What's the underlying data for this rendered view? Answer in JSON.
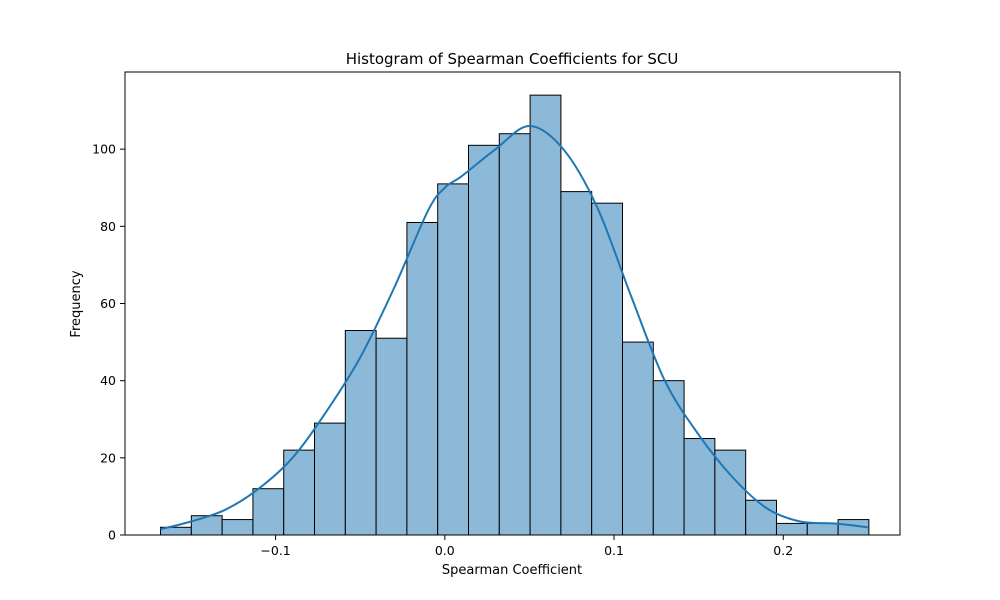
{
  "chart_data": {
    "type": "bar",
    "subtype": "histogram-with-kde",
    "title": "Histogram of Spearman Coefficients for SCU",
    "xlabel": "Spearman Coefficient",
    "ylabel": "Frequency",
    "xlim": [
      -0.189,
      0.269
    ],
    "ylim": [
      0,
      120
    ],
    "xticks": [
      -0.1,
      0.0,
      0.1,
      0.2
    ],
    "xtick_labels": [
      "−0.1",
      "0.0",
      "0.1",
      "0.2"
    ],
    "yticks": [
      0,
      20,
      40,
      60,
      80,
      100
    ],
    "ytick_labels": [
      "0",
      "20",
      "40",
      "60",
      "80",
      "100"
    ],
    "bin_start": -0.168,
    "bin_width": 0.0182,
    "counts": [
      2,
      5,
      4,
      12,
      22,
      29,
      53,
      51,
      81,
      91,
      101,
      104,
      114,
      89,
      86,
      50,
      40,
      25,
      22,
      9,
      3,
      3,
      4
    ],
    "kde": {
      "x": [
        -0.168,
        -0.15,
        -0.13,
        -0.11,
        -0.09,
        -0.07,
        -0.05,
        -0.03,
        -0.01,
        0.0,
        0.01,
        0.03,
        0.05,
        0.07,
        0.09,
        0.11,
        0.13,
        0.15,
        0.17,
        0.19,
        0.21,
        0.23,
        0.25
      ],
      "y": [
        1.5,
        3.5,
        6.5,
        12,
        20,
        32,
        46,
        64,
        84,
        90,
        93,
        100,
        106,
        100,
        85,
        62,
        40,
        26,
        15,
        7,
        3.5,
        3,
        2
      ]
    },
    "colors": {
      "bar_fill": "#8db9d9",
      "bar_edge": "#000000",
      "kde_line": "#1f77b4"
    }
  }
}
